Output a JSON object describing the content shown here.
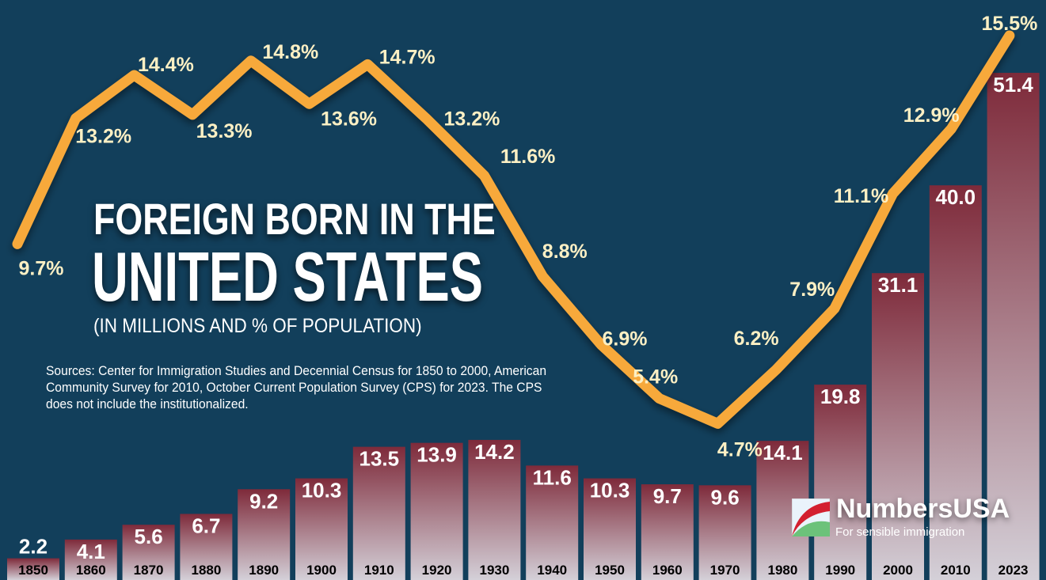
{
  "title_line1": "FOREIGN BORN IN THE",
  "title_line2": "UNITED STATES",
  "subtitle": "(IN MILLIONS AND % OF POPULATION)",
  "sources": "Sources: Center for Immigration Studies and Decennial Census for 1850 to 2000, American Community Survey for 2010, October Current Population Survey (CPS) for 2023. The CPS does not include the institutionalized.",
  "logo": {
    "name": "NumbersUSA",
    "tagline": "For sensible immigration"
  },
  "colors": {
    "background": "#123f5b",
    "bar_top": "#7e2a3a",
    "bar_bottom": "#d4d0d8",
    "line": "#f7a93b",
    "pct_label": "#fdf0c4",
    "bar_label": "#ffffff"
  },
  "chart_data": {
    "type": "bar+line",
    "categories": [
      "1850",
      "1860",
      "1870",
      "1880",
      "1890",
      "1900",
      "1910",
      "1920",
      "1930",
      "1940",
      "1950",
      "1960",
      "1970",
      "1980",
      "1990",
      "2000",
      "2010",
      "2023"
    ],
    "series": [
      {
        "name": "Foreign born (millions)",
        "type": "bar",
        "values": [
          2.2,
          4.1,
          5.6,
          6.7,
          9.2,
          10.3,
          13.5,
          13.9,
          14.2,
          11.6,
          10.3,
          9.7,
          9.6,
          14.1,
          19.8,
          31.1,
          40.0,
          51.4
        ],
        "labels": [
          "2.2",
          "4.1",
          "5.6",
          "6.7",
          "9.2",
          "10.3",
          "13.5",
          "13.9",
          "14.2",
          "11.6",
          "10.3",
          "9.7",
          "9.6",
          "14.1",
          "19.8",
          "31.1",
          "40.0",
          "51.4"
        ]
      },
      {
        "name": "% of population",
        "type": "line",
        "values": [
          9.7,
          13.2,
          14.4,
          13.3,
          14.8,
          13.6,
          14.7,
          13.2,
          11.6,
          8.8,
          6.9,
          5.4,
          4.7,
          6.2,
          7.9,
          11.1,
          12.9,
          15.5
        ],
        "labels": [
          "9.7%",
          "13.2%",
          "14.4%",
          "13.3%",
          "14.8%",
          "13.6%",
          "14.7%",
          "13.2%",
          "11.6%",
          "8.8%",
          "6.9%",
          "5.4%",
          "4.7%",
          "6.2%",
          "7.9%",
          "11.1%",
          "12.9%",
          "15.5%"
        ]
      }
    ],
    "legend": "none",
    "grid": false
  }
}
